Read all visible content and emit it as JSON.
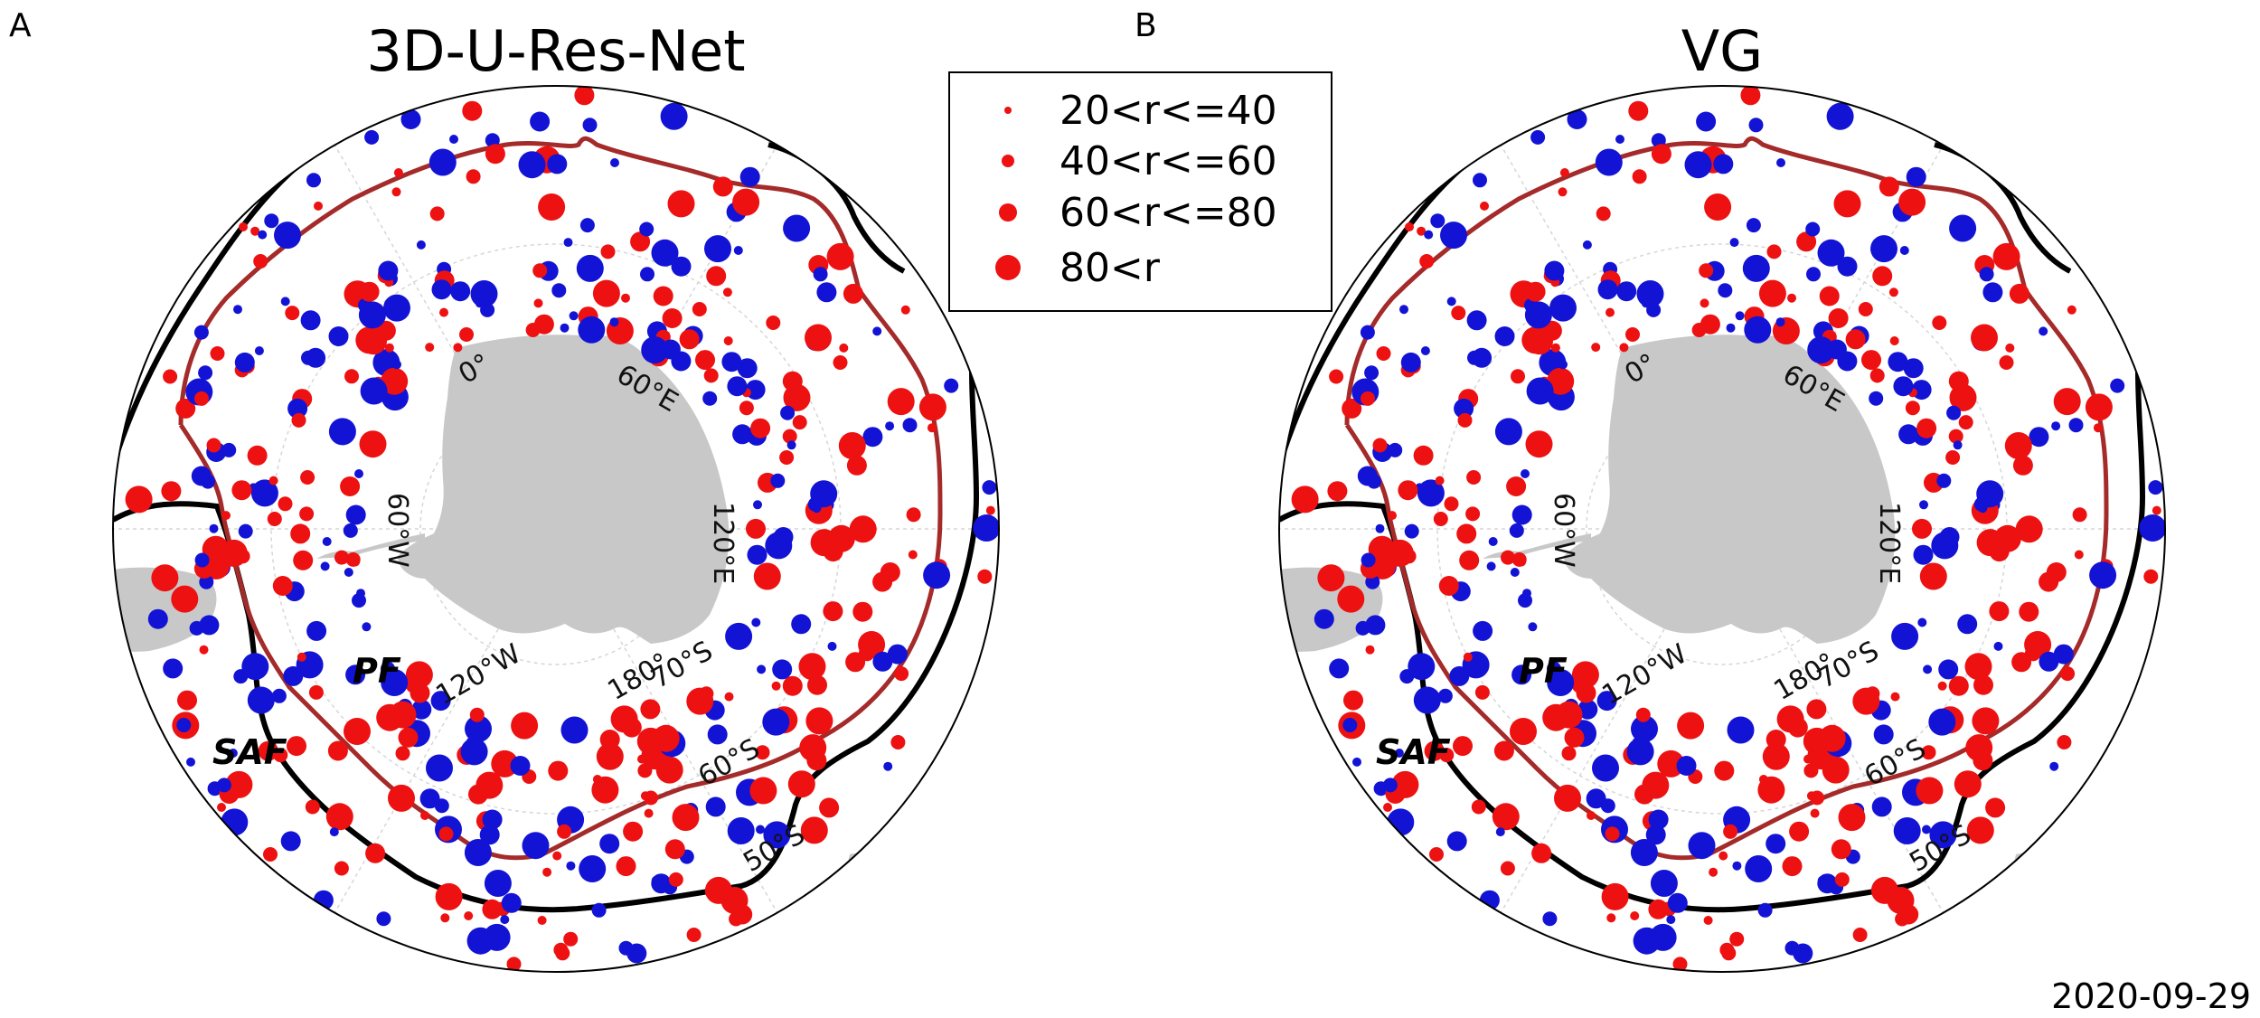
{
  "figure": {
    "date": "2020-09-29",
    "colors": {
      "high": "#ee1111",
      "low": "#1313d6",
      "pf": "#a52a2a",
      "saf": "#000000",
      "land": "#c8c8c8",
      "grid": "#cfcfcf"
    }
  },
  "panels": [
    {
      "letter": "A",
      "title": "3D-U-Res-Net"
    },
    {
      "letter": "B",
      "title": "VG"
    }
  ],
  "legend": {
    "items": [
      {
        "label": "20<r<=40",
        "size_class": 1
      },
      {
        "label": "40<r<=60",
        "size_class": 2
      },
      {
        "label": "60<r<=80",
        "size_class": 3
      },
      {
        "label": "80<r",
        "size_class": 4
      }
    ]
  },
  "map_labels": {
    "lon_0": "0°",
    "lon_60e": "60°E",
    "lon_120e": "120°E",
    "lon_60w": "60°W",
    "lon_120w": "120°W",
    "lon_180": "180°",
    "lat_70s": "70°S",
    "lat_60s": "60°S",
    "lat_50s": "50°S",
    "front_pf": "PF",
    "front_saf": "SAF"
  }
}
